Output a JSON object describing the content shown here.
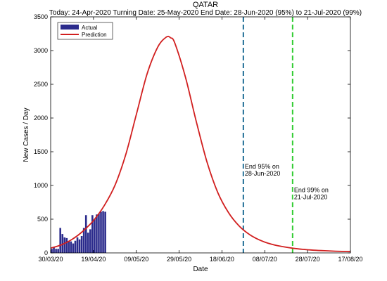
{
  "chart_data": {
    "type": "bar",
    "title": "QATAR",
    "subtitle": "Today: 24-Apr-2020  Turning Date: 25-May-2020  End Date: 28-Jun-2020 (95%) to 21-Jul-2020 (99%)",
    "xlabel": "Date",
    "ylabel": "New Cases / Day",
    "x_range": [
      "30/03/20",
      "17/08/20"
    ],
    "ylim": [
      0,
      3500
    ],
    "x_ticks": [
      "30/03/20",
      "19/04/20",
      "09/05/20",
      "29/05/20",
      "18/06/20",
      "08/07/20",
      "28/07/20",
      "17/08/20"
    ],
    "y_ticks": [
      0,
      500,
      1000,
      1500,
      2000,
      2500,
      3000,
      3500
    ],
    "grid": false,
    "legend_position": "top-left",
    "colors": {
      "actual": "#2b2b8c",
      "prediction": "#d11f1f",
      "end95": "#1f6e96",
      "end99": "#33cc33"
    },
    "series": [
      {
        "name": "Actual",
        "type": "bar",
        "x": [
          "30/03/20",
          "31/03/20",
          "01/04/20",
          "02/04/20",
          "03/04/20",
          "04/04/20",
          "05/04/20",
          "06/04/20",
          "07/04/20",
          "08/04/20",
          "09/04/20",
          "10/04/20",
          "11/04/20",
          "12/04/20",
          "13/04/20",
          "14/04/20",
          "15/04/20",
          "16/04/20",
          "17/04/20",
          "18/04/20",
          "19/04/20",
          "20/04/20",
          "21/04/20",
          "22/04/20",
          "23/04/20",
          "24/04/20"
        ],
        "values": [
          60,
          90,
          60,
          60,
          370,
          280,
          230,
          220,
          170,
          170,
          140,
          180,
          230,
          200,
          250,
          370,
          560,
          300,
          350,
          560,
          500,
          570,
          580,
          610,
          620,
          610
        ]
      },
      {
        "name": "Prediction",
        "type": "line",
        "x": [
          "30/03/20",
          "04/04/20",
          "09/04/20",
          "14/04/20",
          "19/04/20",
          "24/04/20",
          "29/04/20",
          "04/05/20",
          "09/05/20",
          "14/05/20",
          "19/05/20",
          "23/05/20",
          "25/05/20",
          "27/05/20",
          "01/06/20",
          "06/06/20",
          "11/06/20",
          "16/06/20",
          "21/06/20",
          "26/06/20",
          "01/07/20",
          "06/07/20",
          "11/07/20",
          "16/07/20",
          "21/07/20",
          "26/07/20",
          "31/07/20",
          "05/08/20",
          "10/08/20",
          "17/08/20"
        ],
        "values": [
          70,
          120,
          200,
          320,
          480,
          700,
          1000,
          1450,
          2050,
          2650,
          3050,
          3200,
          3190,
          3110,
          2600,
          1950,
          1350,
          900,
          600,
          400,
          270,
          185,
          130,
          95,
          70,
          52,
          40,
          32,
          25,
          20
        ]
      }
    ],
    "markers": [
      {
        "date": "28/06/20",
        "label_line1": "End 95% on",
        "label_line2": "28-Jun-2020",
        "annotation_y": 1250
      },
      {
        "date": "21/07/20",
        "label_line1": "End 99% on",
        "label_line2": "21-Jul-2020",
        "annotation_y": 900
      }
    ]
  }
}
